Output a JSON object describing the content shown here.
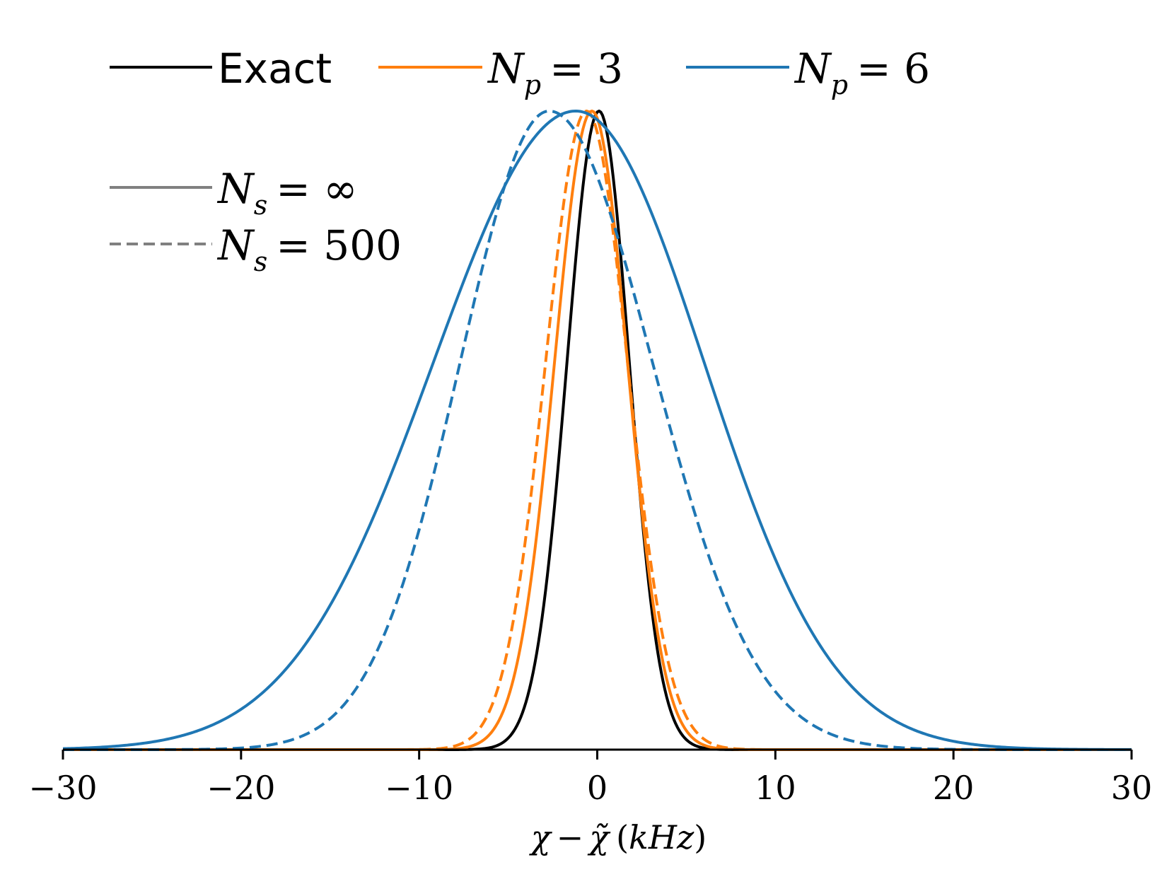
{
  "chart_data": {
    "type": "line",
    "xlabel": "χ − χ̃ (kHz)",
    "ylabel": "",
    "xlim": [
      -30,
      30
    ],
    "xticks": [
      -30,
      -20,
      -10,
      0,
      10,
      20,
      30
    ],
    "xtick_labels": [
      "−30",
      "−20",
      "−10",
      "0",
      "10",
      "20",
      "30"
    ],
    "y_axis_visible": false,
    "grid": false,
    "legend_placement": "top-left",
    "legend_color": [
      {
        "label": "Exact",
        "color": "#000000"
      },
      {
        "label_main": "N",
        "label_sub": "p",
        "label_tail": "= 3",
        "color": "#ff7f0e"
      },
      {
        "label_main": "N",
        "label_sub": "p",
        "label_tail": "= 6",
        "color": "#1f77b4"
      }
    ],
    "legend_style": [
      {
        "label_main": "N",
        "label_sub": "s",
        "label_tail": "= ∞",
        "style": "solid",
        "color": "#808080"
      },
      {
        "label_main": "N",
        "label_sub": "s",
        "label_tail": "= 500",
        "style": "dashed",
        "color": "#808080"
      }
    ],
    "series_params": [
      {
        "id": "exact",
        "color": "#000000",
        "style": "solid",
        "center": 0.1,
        "sigma_left": 1.8,
        "sigma_right": 1.7,
        "peak": 1.0
      },
      {
        "id": "np3-inf",
        "color": "#ff7f0e",
        "style": "solid",
        "center": -0.3,
        "sigma_left": 2.1,
        "sigma_right": 2.0,
        "peak": 1.0
      },
      {
        "id": "np3-500",
        "color": "#ff7f0e",
        "style": "dashed",
        "center": -0.6,
        "sigma_left": 2.3,
        "sigma_right": 2.3,
        "peak": 1.0
      },
      {
        "id": "np6-inf",
        "color": "#1f77b4",
        "style": "solid",
        "center": -1.2,
        "sigma_left": 8.0,
        "sigma_right": 7.2,
        "peak": 1.0
      },
      {
        "id": "np6-500",
        "color": "#1f77b4",
        "style": "dashed",
        "center": -2.7,
        "sigma_left": 5.0,
        "sigma_right": 5.8,
        "peak": 1.0
      }
    ]
  }
}
